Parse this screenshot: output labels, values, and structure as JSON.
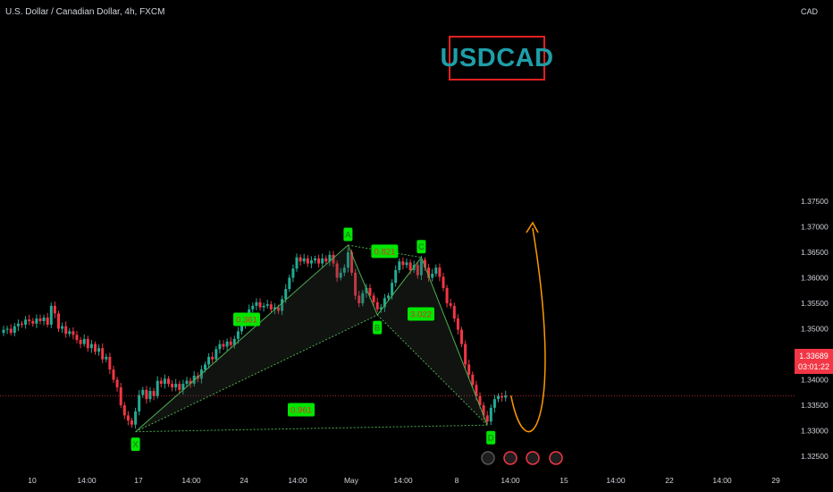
{
  "header": {
    "symbol_line": "U.S. Dollar / Canadian Dollar, 4h, FXCM",
    "currency": "CAD"
  },
  "brand_label": "USDCAD",
  "price_tag": {
    "price": "1.33689",
    "countdown": "03:01:22"
  },
  "colors": {
    "up": "#22ab94",
    "down": "#f23645",
    "pattern": "#4caf50",
    "label_bg": "#00e600",
    "projection": "#ff9800"
  },
  "chart_data": {
    "type": "candlestick",
    "title": "",
    "xlabel": "",
    "ylabel": "",
    "y_ticks": [
      "1.37500",
      "1.37000",
      "1.36500",
      "1.36000",
      "1.35500",
      "1.35000",
      "1.34500",
      "1.34000",
      "1.33500",
      "1.33000",
      "1.32500"
    ],
    "ylim": [
      1.3235,
      1.3792
    ],
    "x_ticks": [
      "10",
      "14:00",
      "17",
      "14:00",
      "24",
      "14:00",
      "May",
      "14:00",
      "8",
      "14:00",
      "15",
      "14:00",
      "22",
      "14:00",
      "29"
    ],
    "current_price": 1.33689,
    "harmonic_pattern": {
      "points": [
        {
          "label": "X",
          "index": 36,
          "price": 1.3298
        },
        {
          "label": "A",
          "index": 94,
          "price": 1.3664
        },
        {
          "label": "B",
          "index": 102,
          "price": 1.3527
        },
        {
          "label": "C",
          "index": 114,
          "price": 1.364
        },
        {
          "label": "D",
          "index": 132,
          "price": 1.3311
        }
      ],
      "ratios": [
        {
          "label": "0.361",
          "between": "XA-B"
        },
        {
          "label": "0.821",
          "between": "AC"
        },
        {
          "label": "3.022",
          "between": "BD"
        },
        {
          "label": "0.961",
          "between": "XD"
        }
      ]
    },
    "closes": [
      1.3498,
      1.35,
      1.3492,
      1.3505,
      1.351,
      1.3508,
      1.3518,
      1.3515,
      1.351,
      1.352,
      1.3515,
      1.3522,
      1.3508,
      1.3545,
      1.353,
      1.35,
      1.3505,
      1.349,
      1.3495,
      1.3488,
      1.3478,
      1.347,
      1.348,
      1.3462,
      1.347,
      1.3455,
      1.3462,
      1.344,
      1.3445,
      1.342,
      1.34,
      1.3385,
      1.335,
      1.333,
      1.332,
      1.3312,
      1.3338,
      1.337,
      1.338,
      1.3362,
      1.3378,
      1.3368,
      1.3398,
      1.3392,
      1.3402,
      1.3392,
      1.3385,
      1.3392,
      1.338,
      1.3392,
      1.3398,
      1.3392,
      1.3408,
      1.3402,
      1.342,
      1.343,
      1.3445,
      1.344,
      1.346,
      1.347,
      1.3465,
      1.3475,
      1.3468,
      1.348,
      1.3495,
      1.3508,
      1.352,
      1.3538,
      1.3545,
      1.3552,
      1.3542,
      1.3545,
      1.3548,
      1.3538,
      1.3542,
      1.3535,
      1.3558,
      1.3578,
      1.36,
      1.3618,
      1.364,
      1.3632,
      1.3638,
      1.3628,
      1.3634,
      1.3638,
      1.3628,
      1.3638,
      1.3632,
      1.3645,
      1.3628,
      1.36,
      1.361,
      1.362,
      1.365,
      1.361,
      1.3565,
      1.355,
      1.357,
      1.358,
      1.3565,
      1.3552,
      1.3538,
      1.3542,
      1.356,
      1.3565,
      1.359,
      1.3615,
      1.3632,
      1.3625,
      1.363,
      1.3615,
      1.3625,
      1.3605,
      1.3635,
      1.362,
      1.36,
      1.3608,
      1.362,
      1.3602,
      1.358,
      1.355,
      1.3545,
      1.352,
      1.3498,
      1.347,
      1.343,
      1.341,
      1.339,
      1.3368,
      1.335,
      1.333,
      1.3318,
      1.3345,
      1.3362,
      1.3368,
      1.3365,
      1.3369
    ]
  }
}
